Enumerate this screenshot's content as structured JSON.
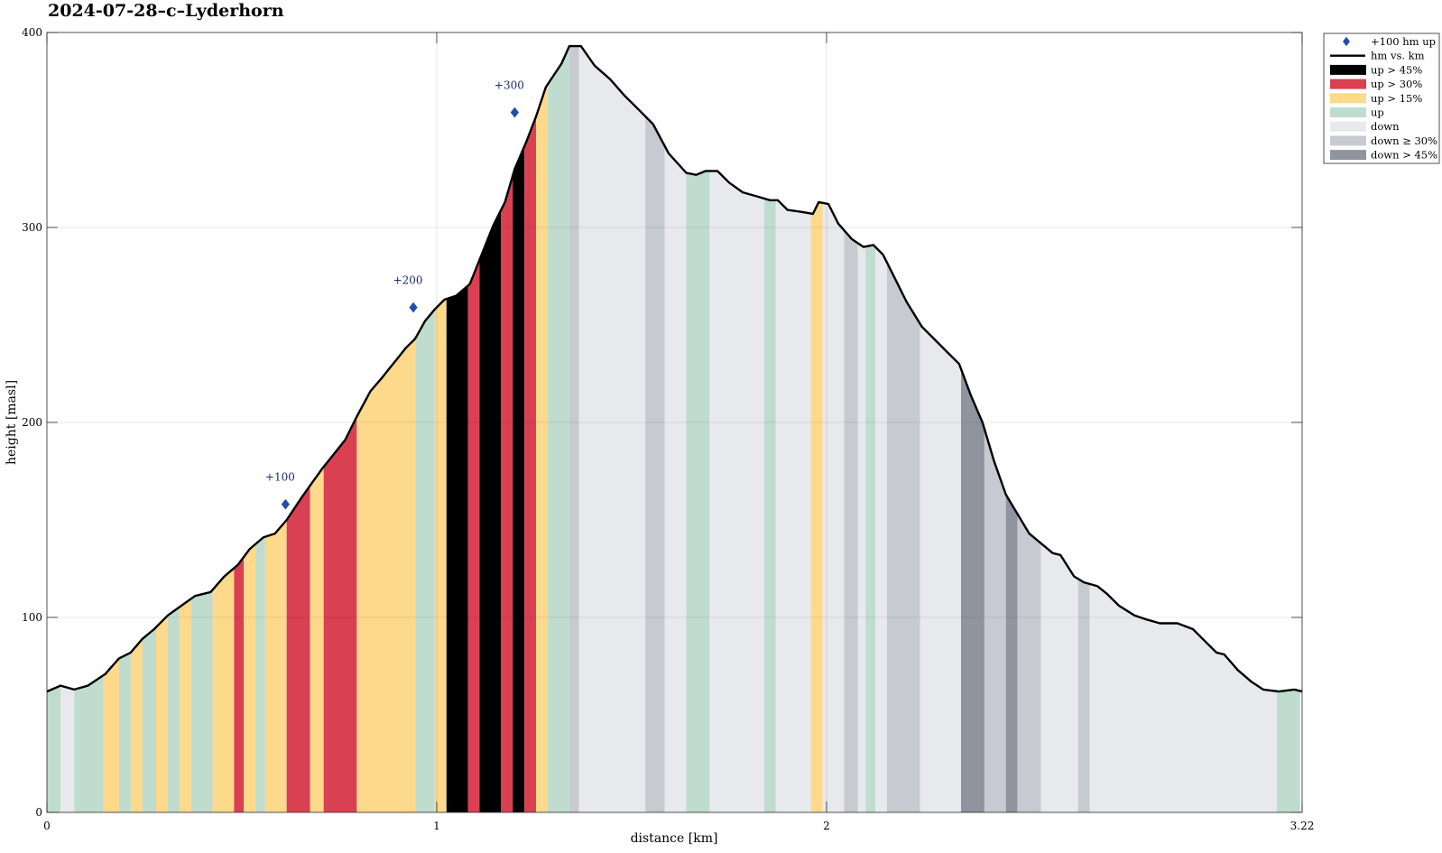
{
  "chart_data": {
    "type": "area",
    "title": "2024-07-28–c–Lyderhorn",
    "xlabel": "distance [km]",
    "ylabel": "height [masl]",
    "xlim": [
      0,
      3.22
    ],
    "ylim": [
      0,
      400
    ],
    "xticks": [
      0,
      1,
      2,
      3.22
    ],
    "xtick_labels": [
      "0",
      "1",
      "2",
      "3.22"
    ],
    "yticks": [
      0,
      100,
      200,
      300,
      400
    ],
    "ytick_labels": [
      "0",
      "100",
      "200",
      "300",
      "400"
    ],
    "grid": true,
    "legend_position": "top-right, outside plot",
    "legend": [
      {
        "label": "+100 hm up",
        "kind": "marker",
        "color": "#1f4fa8"
      },
      {
        "label": "hm vs. km",
        "kind": "line",
        "color": "#000000"
      },
      {
        "label": "up > 45%",
        "kind": "patch",
        "color": "#000000"
      },
      {
        "label": "up > 30%",
        "kind": "patch",
        "color": "#d94052"
      },
      {
        "label": "up > 15%",
        "kind": "patch",
        "color": "#fdd98b"
      },
      {
        "label": "up",
        "kind": "patch",
        "color": "#bfdccf"
      },
      {
        "label": "down",
        "kind": "patch",
        "color": "#e8e9ed"
      },
      {
        "label": "down ≥ 30%",
        "kind": "patch",
        "color": "#c8cad2"
      },
      {
        "label": "down > 45%",
        "kind": "patch",
        "color": "#8f949f"
      }
    ],
    "profile": {
      "x": [
        0,
        0.035,
        0.07,
        0.105,
        0.15,
        0.185,
        0.215,
        0.245,
        0.275,
        0.31,
        0.345,
        0.38,
        0.42,
        0.455,
        0.49,
        0.52,
        0.555,
        0.585,
        0.615,
        0.655,
        0.705,
        0.765,
        0.795,
        0.83,
        0.86,
        0.88,
        0.9,
        0.92,
        0.945,
        0.97,
        0.995,
        1.02,
        1.05,
        1.085,
        1.115,
        1.145,
        1.175,
        1.2,
        1.23,
        1.255,
        1.28,
        1.32,
        1.34,
        1.37,
        1.405,
        1.445,
        1.48,
        1.515,
        1.555,
        1.595,
        1.64,
        1.665,
        1.69,
        1.72,
        1.75,
        1.785,
        1.82,
        1.855,
        1.875,
        1.9,
        1.935,
        1.965,
        1.98,
        2.005,
        2.03,
        2.065,
        2.095,
        2.12,
        2.145,
        2.175,
        2.205,
        2.245,
        2.275,
        2.305,
        2.34,
        2.37,
        2.4,
        2.43,
        2.46,
        2.49,
        2.52,
        2.55,
        2.58,
        2.6,
        2.635,
        2.66,
        2.695,
        2.72,
        2.75,
        2.79,
        2.82,
        2.855,
        2.9,
        2.94,
        2.965,
        3,
        3.02,
        3.055,
        3.09,
        3.12,
        3.16,
        3.2,
        3.22
      ],
      "y": [
        62,
        65,
        63,
        65,
        71,
        79,
        82,
        89,
        94,
        101,
        106,
        111,
        113,
        121,
        127,
        135,
        141,
        143,
        150,
        162,
        176,
        191,
        203,
        216,
        223,
        228,
        233,
        238,
        243,
        252,
        258,
        263,
        265,
        271,
        286,
        301,
        313,
        330,
        344,
        357,
        372,
        384,
        393,
        393,
        383,
        376,
        368,
        361,
        353,
        338,
        328,
        327,
        329,
        329,
        323,
        318,
        316,
        314,
        314,
        309,
        308,
        307,
        313,
        312,
        302,
        294,
        290,
        291,
        286,
        274,
        262,
        249,
        243,
        237,
        230,
        214,
        200,
        180,
        163,
        153,
        143,
        138,
        133,
        132,
        121,
        118,
        116,
        112,
        106,
        101,
        99,
        97,
        97,
        94,
        89,
        82,
        81,
        73,
        67,
        63,
        62,
        63,
        62
      ]
    },
    "segments": [
      {
        "from": 0,
        "to": 0.035,
        "category": "up"
      },
      {
        "from": 0.035,
        "to": 0.07,
        "category": "down"
      },
      {
        "from": 0.07,
        "to": 0.145,
        "category": "up"
      },
      {
        "from": 0.145,
        "to": 0.185,
        "category": "up > 15%"
      },
      {
        "from": 0.185,
        "to": 0.215,
        "category": "up"
      },
      {
        "from": 0.215,
        "to": 0.245,
        "category": "up > 15%"
      },
      {
        "from": 0.245,
        "to": 0.28,
        "category": "up"
      },
      {
        "from": 0.28,
        "to": 0.31,
        "category": "up > 15%"
      },
      {
        "from": 0.31,
        "to": 0.34,
        "category": "up"
      },
      {
        "from": 0.34,
        "to": 0.37,
        "category": "up > 15%"
      },
      {
        "from": 0.37,
        "to": 0.425,
        "category": "up"
      },
      {
        "from": 0.425,
        "to": 0.48,
        "category": "up > 15%"
      },
      {
        "from": 0.48,
        "to": 0.505,
        "category": "up > 30%"
      },
      {
        "from": 0.505,
        "to": 0.535,
        "category": "up > 15%"
      },
      {
        "from": 0.535,
        "to": 0.56,
        "category": "up"
      },
      {
        "from": 0.56,
        "to": 0.615,
        "category": "up > 15%"
      },
      {
        "from": 0.615,
        "to": 0.675,
        "category": "up > 30%"
      },
      {
        "from": 0.675,
        "to": 0.71,
        "category": "up > 15%"
      },
      {
        "from": 0.71,
        "to": 0.795,
        "category": "up > 30%"
      },
      {
        "from": 0.795,
        "to": 0.945,
        "category": "up > 15%"
      },
      {
        "from": 0.945,
        "to": 0.995,
        "category": "up"
      },
      {
        "from": 0.995,
        "to": 1.025,
        "category": "up > 15%"
      },
      {
        "from": 1.025,
        "to": 1.08,
        "category": "up > 45%"
      },
      {
        "from": 1.08,
        "to": 1.11,
        "category": "up > 30%"
      },
      {
        "from": 1.11,
        "to": 1.165,
        "category": "up > 45%"
      },
      {
        "from": 1.165,
        "to": 1.195,
        "category": "up > 30%"
      },
      {
        "from": 1.195,
        "to": 1.225,
        "category": "up > 45%"
      },
      {
        "from": 1.225,
        "to": 1.255,
        "category": "up > 30%"
      },
      {
        "from": 1.255,
        "to": 1.285,
        "category": "up > 15%"
      },
      {
        "from": 1.285,
        "to": 1.34,
        "category": "up"
      },
      {
        "from": 1.34,
        "to": 1.365,
        "category": "down ≥ 30%"
      },
      {
        "from": 1.365,
        "to": 1.535,
        "category": "down"
      },
      {
        "from": 1.535,
        "to": 1.585,
        "category": "down ≥ 30%"
      },
      {
        "from": 1.585,
        "to": 1.64,
        "category": "down"
      },
      {
        "from": 1.64,
        "to": 1.7,
        "category": "up"
      },
      {
        "from": 1.7,
        "to": 1.84,
        "category": "down"
      },
      {
        "from": 1.84,
        "to": 1.87,
        "category": "up"
      },
      {
        "from": 1.87,
        "to": 1.96,
        "category": "down"
      },
      {
        "from": 1.96,
        "to": 1.99,
        "category": "up > 15%"
      },
      {
        "from": 1.99,
        "to": 2.045,
        "category": "down"
      },
      {
        "from": 2.045,
        "to": 2.08,
        "category": "down ≥ 30%"
      },
      {
        "from": 2.08,
        "to": 2.1,
        "category": "down"
      },
      {
        "from": 2.1,
        "to": 2.125,
        "category": "up"
      },
      {
        "from": 2.125,
        "to": 2.155,
        "category": "down"
      },
      {
        "from": 2.155,
        "to": 2.24,
        "category": "down ≥ 30%"
      },
      {
        "from": 2.24,
        "to": 2.345,
        "category": "down"
      },
      {
        "from": 2.345,
        "to": 2.405,
        "category": "down > 45%"
      },
      {
        "from": 2.405,
        "to": 2.46,
        "category": "down ≥ 30%"
      },
      {
        "from": 2.46,
        "to": 2.49,
        "category": "down > 45%"
      },
      {
        "from": 2.49,
        "to": 2.55,
        "category": "down ≥ 30%"
      },
      {
        "from": 2.55,
        "to": 2.645,
        "category": "down"
      },
      {
        "from": 2.645,
        "to": 2.675,
        "category": "down ≥ 30%"
      },
      {
        "from": 2.675,
        "to": 3.155,
        "category": "down"
      },
      {
        "from": 3.155,
        "to": 3.215,
        "category": "up"
      }
    ],
    "markers": [
      {
        "x": 0.612,
        "y": 158,
        "label": "+100"
      },
      {
        "x": 0.94,
        "y": 259,
        "label": "+200"
      },
      {
        "x": 1.2,
        "y": 359,
        "label": "+300"
      }
    ]
  }
}
